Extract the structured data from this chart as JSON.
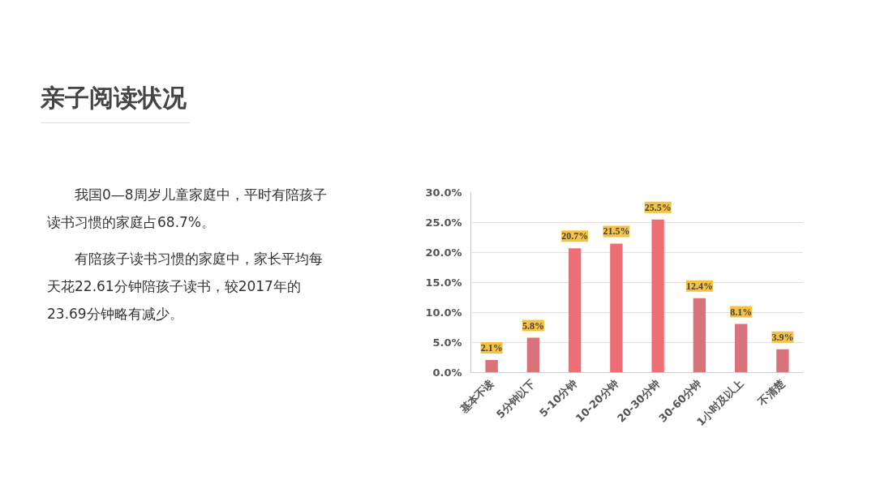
{
  "chart_data": {
    "type": "bar",
    "title": "亲子阅读状况",
    "annotations": [
      "　　我国0—8周岁儿童家庭中，平时有陪孩子读书习惯的家庭占68.7%。",
      "　　有陪孩子读书习惯的家庭中，家长平均每天花22.61分钟陪孩子读书，较2017年的23.69分钟略有减少。"
    ],
    "categories": [
      "基本不读",
      "5分钟以下",
      "5-10分钟",
      "10-20分钟",
      "20-30分钟",
      "30-60分钟",
      "1小时及以上",
      "不清楚"
    ],
    "values": [
      2.1,
      5.8,
      20.7,
      21.5,
      25.5,
      12.4,
      8.1,
      3.9
    ],
    "value_labels": [
      "2.1%",
      "5.8%",
      "20.7%",
      "21.5%",
      "25.5%",
      "12.4%",
      "8.1%",
      "3.9%"
    ],
    "colors": [
      "#d9737b",
      "#d9737b",
      "#ee6e76",
      "#ee6e76",
      "#ee6e76",
      "#d9737b",
      "#d9737b",
      "#d9737b"
    ],
    "ylim": [
      0,
      30
    ],
    "yticks": [
      {
        "value": 0,
        "label": "0.0%"
      },
      {
        "value": 5,
        "label": "5.0%"
      },
      {
        "value": 10,
        "label": "10.0%"
      },
      {
        "value": 15,
        "label": "15.0%"
      },
      {
        "value": 20,
        "label": "20.0%"
      },
      {
        "value": 25,
        "label": "25.0%"
      },
      {
        "value": 30,
        "label": "30.0%"
      }
    ],
    "grid": "y"
  }
}
